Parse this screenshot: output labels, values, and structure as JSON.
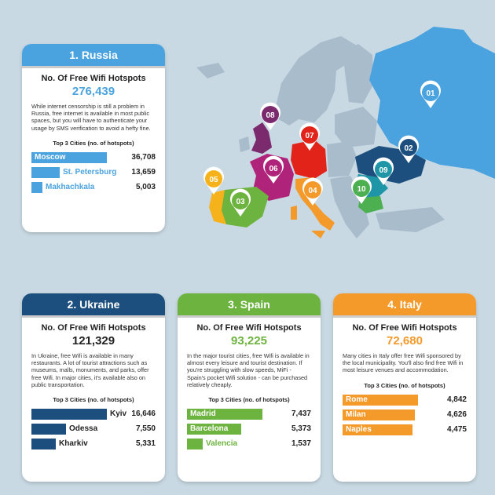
{
  "russia": {
    "header": "1. Russia",
    "hotspots_label": "No. Of Free Wifi Hotspots",
    "hotspots_value": "276,439",
    "description": "While internet censorship is still a problem in Russia, free internet is available in most public spaces, but you will have to authenticate your usage by SMS verification to avoid a hefty fine.",
    "top3_label": "Top 3 Cities (no. of hotspots)",
    "cities": [
      {
        "name": "Moscow",
        "value": "36,708",
        "count": 36708
      },
      {
        "name": "St. Petersburg",
        "value": "13,659",
        "count": 13659
      },
      {
        "name": "Makhachkala",
        "value": "5,003",
        "count": 5003
      }
    ],
    "color": "#4aa3df"
  },
  "ukraine": {
    "header": "2. Ukraine",
    "hotspots_label": "No. Of Free Wifi Hotspots",
    "hotspots_value": "121,329",
    "description": "In Ukraine, free Wifi is available in many restaurants. A lot of tourist attractions such as museums, malls, monuments, and parks, offer free Wifi. In major cities, it's available also on public transportation.",
    "top3_label": "Top 3 Cities (no. of hotspots)",
    "cities": [
      {
        "name": "Kyiv",
        "value": "16,646",
        "count": 16646
      },
      {
        "name": "Odessa",
        "value": "7,550",
        "count": 7550
      },
      {
        "name": "Kharkiv",
        "value": "5,331",
        "count": 5331
      }
    ],
    "color": "#1d4f7e"
  },
  "spain": {
    "header": "3. Spain",
    "hotspots_label": "No. Of Free Wifi Hotspots",
    "hotspots_value": "93,225",
    "description": "In the major tourist cities, free Wifi is available in almost every leisure and tourist destination. If you're struggling with slow speeds, MiFi - Spain's pocket Wifi solution - can be purchased relatively cheaply.",
    "top3_label": "Top 3 Cities (no. of hotspots)",
    "cities": [
      {
        "name": "Madrid",
        "value": "7,437",
        "count": 7437
      },
      {
        "name": "Barcelona",
        "value": "5,373",
        "count": 5373
      },
      {
        "name": "Valencia",
        "value": "1,537",
        "count": 1537
      }
    ],
    "color": "#6db33f"
  },
  "italy": {
    "header": "4. Italy",
    "hotspots_label": "No. Of Free Wifi Hotspots",
    "hotspots_value": "72,680",
    "description": "Many cities in Italy offer free Wifi sponsored by the local municipality. You'll also find free Wifi in most leisure venues and accommodation.",
    "top3_label": "Top 3 Cities (no. of hotspots)",
    "cities": [
      {
        "name": "Rome",
        "value": "4,842",
        "count": 4842
      },
      {
        "name": "Milan",
        "value": "4,626",
        "count": 4626
      },
      {
        "name": "Naples",
        "value": "4,475",
        "count": 4475
      }
    ],
    "color": "#f39a2b"
  },
  "map": {
    "markers": [
      {
        "label": "01",
        "color": "#4aa3df"
      },
      {
        "label": "02",
        "color": "#1d4f7e"
      },
      {
        "label": "03",
        "color": "#6db33f"
      },
      {
        "label": "04",
        "color": "#f39a2b"
      },
      {
        "label": "05",
        "color": "#f6b21b"
      },
      {
        "label": "06",
        "color": "#b0237a"
      },
      {
        "label": "07",
        "color": "#e2231a"
      },
      {
        "label": "08",
        "color": "#7b2a6e"
      },
      {
        "label": "09",
        "color": "#1f95a8"
      },
      {
        "label": "10",
        "color": "#4caf50"
      }
    ],
    "land_color": "#a9bccb"
  }
}
